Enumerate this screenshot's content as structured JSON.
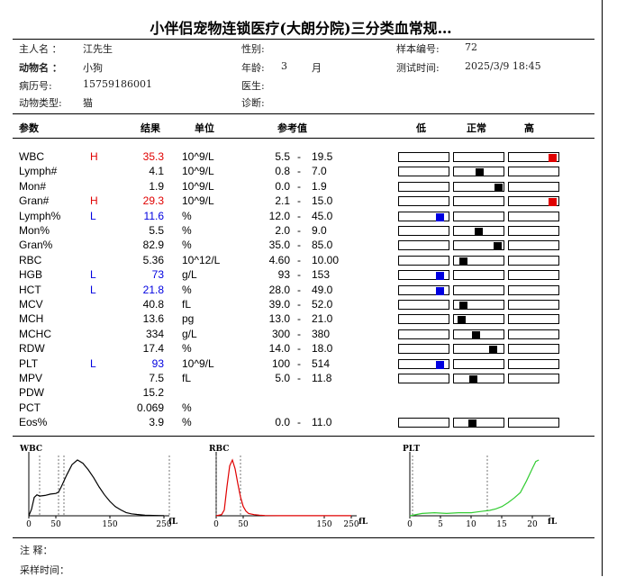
{
  "title": "小伴侣宠物连锁医疗(大朗分院)三分类血常规…",
  "info": {
    "owner_label": "主人名  ：",
    "owner": "江先生",
    "animal_label": "动物名  ：",
    "animal": "小狗",
    "record_label": "病历号:",
    "record": "15759186001",
    "type_label": "动物类型:",
    "type": "猫",
    "sex_label": "性别:",
    "sex": "",
    "age_label": "年龄:",
    "age": "3",
    "age_unit": "月",
    "doctor_label": "医生:",
    "doctor": "",
    "diag_label": "诊断:",
    "diag": "",
    "sample_label": "样本编号:",
    "sample": "72",
    "time_label": "测试时间:",
    "time": "2025/3/9  18:45"
  },
  "headers": {
    "param": "参数",
    "result": "结果",
    "unit": "单位",
    "ref": "参考值",
    "low": "低",
    "normal": "正常",
    "high": "高"
  },
  "colors": {
    "high": "#e00000",
    "low": "#0000e0",
    "normal": "#000000"
  },
  "rows": [
    {
      "name": "WBC",
      "flag": "H",
      "result": "35.3",
      "unit": "10^9/L",
      "lo": "5.5",
      "hi": "19.5",
      "marker": 1.0
    },
    {
      "name": "Lymph#",
      "flag": "",
      "result": "4.1",
      "unit": "10^9/L",
      "lo": "0.8",
      "hi": "7.0",
      "marker": 0.53
    },
    {
      "name": "Mon#",
      "flag": "",
      "result": "1.9",
      "unit": "10^9/L",
      "lo": "0.0",
      "hi": "1.9",
      "marker": 0.97
    },
    {
      "name": "Gran#",
      "flag": "H",
      "result": "29.3",
      "unit": "10^9/L",
      "lo": "2.1",
      "hi": "15.0",
      "marker": 1.0
    },
    {
      "name": "Lymph%",
      "flag": "L",
      "result": "11.6",
      "unit": "%",
      "lo": "12.0",
      "hi": "45.0",
      "marker": 0.0
    },
    {
      "name": "Mon%",
      "flag": "",
      "result": "5.5",
      "unit": "%",
      "lo": "2.0",
      "hi": "9.0",
      "marker": 0.5
    },
    {
      "name": "Gran%",
      "flag": "",
      "result": "82.9",
      "unit": "%",
      "lo": "35.0",
      "hi": "85.0",
      "marker": 0.96
    },
    {
      "name": "RBC",
      "flag": "",
      "result": "5.36",
      "unit": "10^12/L",
      "lo": "4.60",
      "hi": "10.00",
      "marker": 0.14
    },
    {
      "name": "HGB",
      "flag": "L",
      "result": "73",
      "unit": "g/L",
      "lo": "93",
      "hi": "153",
      "marker": 0.0
    },
    {
      "name": "HCT",
      "flag": "L",
      "result": "21.8",
      "unit": "%",
      "lo": "28.0",
      "hi": "49.0",
      "marker": 0.0
    },
    {
      "name": "MCV",
      "flag": "",
      "result": "40.8",
      "unit": "fL",
      "lo": "39.0",
      "hi": "52.0",
      "marker": 0.14
    },
    {
      "name": "MCH",
      "flag": "",
      "result": "13.6",
      "unit": "pg",
      "lo": "13.0",
      "hi": "21.0",
      "marker": 0.08
    },
    {
      "name": "MCHC",
      "flag": "",
      "result": "334",
      "unit": "g/L",
      "lo": "300",
      "hi": "380",
      "marker": 0.43
    },
    {
      "name": "RDW",
      "flag": "",
      "result": "17.4",
      "unit": "%",
      "lo": "14.0",
      "hi": "18.0",
      "marker": 0.85
    },
    {
      "name": "PLT",
      "flag": "L",
      "result": "93",
      "unit": "10^9/L",
      "lo": "100",
      "hi": "514",
      "marker": 0.0
    },
    {
      "name": "MPV",
      "flag": "",
      "result": "7.5",
      "unit": "fL",
      "lo": "5.0",
      "hi": "11.8",
      "marker": 0.37
    },
    {
      "name": "PDW",
      "flag": "",
      "result": "15.2",
      "unit": "",
      "lo": "",
      "hi": "",
      "marker": null
    },
    {
      "name": "PCT",
      "flag": "",
      "result": "0.069",
      "unit": "%",
      "lo": "",
      "hi": "",
      "marker": null
    },
    {
      "name": "Eos%",
      "flag": "",
      "result": "3.9",
      "unit": "%",
      "lo": "0.0",
      "hi": "11.0",
      "marker": 0.35
    }
  ],
  "chart_data": [
    {
      "type": "line",
      "title": "WBC",
      "unit": "fL",
      "xlim": [
        0,
        250
      ],
      "ticks": [
        "0",
        "50",
        "150",
        "250"
      ],
      "color": "#000000",
      "x": [
        0,
        5,
        10,
        15,
        20,
        30,
        40,
        50,
        55,
        60,
        70,
        80,
        90,
        100,
        110,
        120,
        130,
        140,
        150,
        160,
        170,
        180,
        190,
        200,
        215,
        230,
        250
      ],
      "y": [
        0,
        10,
        28,
        32,
        30,
        31,
        33,
        34,
        36,
        44,
        62,
        78,
        85,
        80,
        70,
        58,
        44,
        32,
        22,
        14,
        9,
        5,
        3,
        2,
        1,
        0.5,
        0.3
      ]
    },
    {
      "type": "line",
      "title": "RBC",
      "unit": "fL",
      "xlim": [
        0,
        250
      ],
      "ticks": [
        "0",
        "50",
        "150",
        "250"
      ],
      "color": "#e00000",
      "x": [
        0,
        10,
        15,
        20,
        25,
        30,
        35,
        40,
        45,
        50,
        55,
        60,
        70,
        80,
        90,
        100,
        120,
        150,
        200,
        250
      ],
      "y": [
        0,
        2,
        10,
        50,
        85,
        95,
        80,
        55,
        32,
        16,
        8,
        4,
        2,
        1,
        0.5,
        0.3,
        0.2,
        0.1,
        0.1,
        0.1
      ]
    },
    {
      "type": "line",
      "title": "PLT",
      "unit": "fL",
      "xlim": [
        0,
        22
      ],
      "ticks": [
        "0",
        "5",
        "10",
        "15",
        "20"
      ],
      "color": "#33cc33",
      "x": [
        0,
        2,
        4,
        6,
        8,
        10,
        11,
        12,
        13,
        14,
        15,
        16,
        17,
        18,
        19,
        20,
        20.5,
        21
      ],
      "y": [
        0,
        3,
        4,
        3,
        4,
        4,
        5,
        6,
        7,
        9,
        12,
        17,
        23,
        30,
        45,
        62,
        70,
        72
      ]
    }
  ],
  "footer": {
    "note_label": "注      释：",
    "sample_time_label": "采样时间："
  }
}
